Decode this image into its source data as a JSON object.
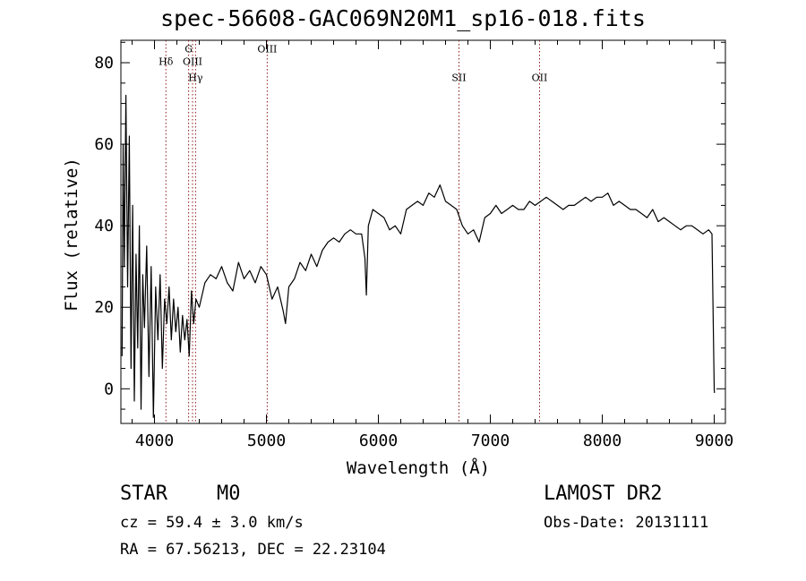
{
  "chart_data": {
    "type": "line",
    "title": "spec-56608-GAC069N20M1_sp16-018.fits",
    "xlabel": "Wavelength (Å)",
    "ylabel": "Flux (relative)",
    "xlim": [
      3700,
      9100
    ],
    "ylim": [
      -8.5,
      85.5
    ],
    "xticks": [
      4000,
      5000,
      6000,
      7000,
      8000,
      9000
    ],
    "yticks": [
      0,
      20,
      40,
      60,
      80
    ],
    "grid": false,
    "series": [
      {
        "x": [
          3710,
          3720,
          3730,
          3745,
          3760,
          3775,
          3790,
          3805,
          3820,
          3835,
          3850,
          3865,
          3880,
          3895,
          3910,
          3930,
          3950,
          3970,
          3990,
          4010,
          4030,
          4050,
          4070,
          4090,
          4110,
          4130,
          4150,
          4170,
          4190,
          4210,
          4230,
          4250,
          4270,
          4290,
          4310,
          4330,
          4350,
          4370,
          4400,
          4450,
          4500,
          4550,
          4600,
          4650,
          4700,
          4750,
          4800,
          4850,
          4900,
          4950,
          5000,
          5050,
          5100,
          5150,
          5170,
          5200,
          5250,
          5300,
          5350,
          5400,
          5450,
          5500,
          5550,
          5600,
          5650,
          5700,
          5750,
          5800,
          5850,
          5880,
          5893,
          5910,
          5950,
          6000,
          6050,
          6100,
          6150,
          6200,
          6250,
          6300,
          6350,
          6400,
          6450,
          6500,
          6550,
          6600,
          6650,
          6700,
          6750,
          6800,
          6850,
          6900,
          6950,
          7000,
          7050,
          7100,
          7150,
          7200,
          7250,
          7300,
          7350,
          7400,
          7450,
          7500,
          7550,
          7600,
          7650,
          7700,
          7750,
          7800,
          7850,
          7900,
          7950,
          8000,
          8050,
          8100,
          8150,
          8200,
          8250,
          8300,
          8350,
          8400,
          8450,
          8500,
          8550,
          8600,
          8650,
          8700,
          8750,
          8800,
          8850,
          8900,
          8950,
          8980,
          9000,
          9002
        ],
        "y": [
          8,
          60,
          30,
          72,
          25,
          62,
          5,
          45,
          -3,
          33,
          10,
          40,
          -5,
          28,
          15,
          35,
          3,
          30,
          -7,
          25,
          12,
          28,
          5,
          22,
          16,
          25,
          12,
          22,
          14,
          20,
          9,
          18,
          12,
          17,
          8,
          24,
          16,
          22,
          20,
          26,
          28,
          27,
          30,
          26,
          24,
          31,
          27,
          29,
          26,
          30,
          28,
          22,
          25,
          19,
          16,
          25,
          27,
          31,
          29,
          33,
          30,
          34,
          36,
          37,
          36,
          38,
          39,
          38,
          38,
          32,
          23,
          40,
          44,
          43,
          42,
          39,
          40,
          38,
          44,
          45,
          46,
          45,
          48,
          47,
          50,
          46,
          45,
          44,
          40,
          38,
          39,
          36,
          42,
          43,
          45,
          43,
          44,
          45,
          44,
          44,
          46,
          45,
          46,
          47,
          46,
          45,
          44,
          45,
          45,
          46,
          47,
          46,
          47,
          47,
          48,
          45,
          46,
          45,
          44,
          44,
          43,
          42,
          44,
          41,
          42,
          41,
          40,
          39,
          40,
          40,
          39,
          38,
          39,
          38,
          0,
          -1
        ]
      }
    ],
    "lines": [
      {
        "label": "Hδ",
        "x": 4102,
        "label_y": 79.5
      },
      {
        "label": "G",
        "x": 4305,
        "label_y": 82.5
      },
      {
        "label": "OIII",
        "x": 4340,
        "label_y": 79.5
      },
      {
        "label": "Hγ",
        "x": 4367,
        "label_y": 75.5
      },
      {
        "label": "OIII",
        "x": 5007,
        "label_y": 82.5
      },
      {
        "label": "SII",
        "x": 6720,
        "label_y": 75.5
      },
      {
        "label": "OII",
        "x": 7440,
        "label_y": 75.5
      }
    ]
  },
  "info": {
    "star_label": "STAR",
    "subclass": "M0",
    "survey": "LAMOST DR2",
    "cz_text": "cz = 59.4 ± 3.0 km/s",
    "obs_date": "Obs-Date: 20131111",
    "radec": "RA =  67.56213, DEC =  22.23104"
  }
}
